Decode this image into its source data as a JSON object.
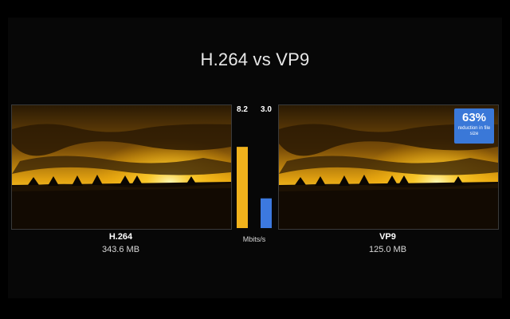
{
  "title": "H.264 vs VP9",
  "left": {
    "label": "H.264",
    "size": "343.6 MB"
  },
  "right": {
    "label": "VP9",
    "size": "125.0 MB"
  },
  "badge": {
    "percent": "63%",
    "text": "reduction in file size"
  },
  "colors": {
    "bar_h264": "#f0b21c",
    "bar_vp9": "#3c79e0",
    "badge": "#3a78d8"
  },
  "chart_data": {
    "type": "bar",
    "categories": [
      "H.264",
      "VP9"
    ],
    "values": [
      8.2,
      3.0
    ],
    "value_labels": [
      "8.2",
      "3.0"
    ],
    "unit_label": "Mbits/s",
    "ylim": [
      0,
      9.5
    ]
  }
}
